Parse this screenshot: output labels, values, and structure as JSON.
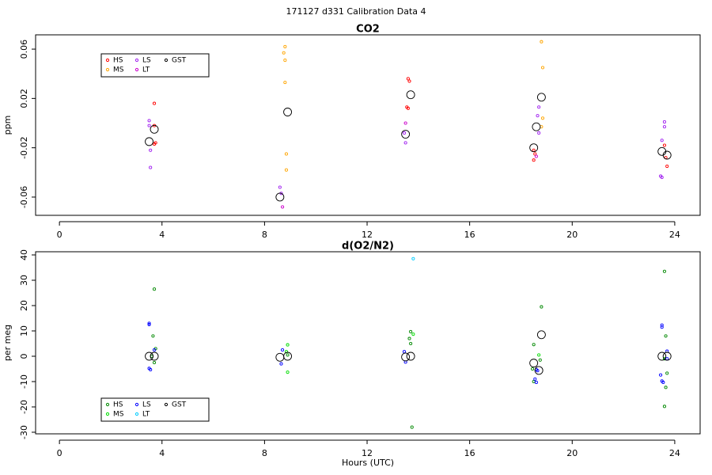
{
  "title": "171127  d331   Calibration Data 4",
  "chart_data": [
    {
      "type": "scatter",
      "title": "CO2",
      "ylabel": "ppm",
      "xlim": [
        -0.93,
        24.99
      ],
      "xticks": [
        0,
        4,
        8,
        12,
        16,
        20,
        24
      ],
      "ylim": [
        -0.0748,
        0.0716
      ],
      "yticks": [
        -0.06,
        -0.02,
        0.02,
        0.06
      ],
      "legend": "top-left",
      "series": [
        {
          "name": "HS",
          "color": "#ff0000",
          "marker_size": 1.6,
          "x": [
            3.7,
            3.7,
            3.7,
            3.75,
            13.6,
            13.65,
            13.6,
            13.55,
            18.5,
            18.55,
            18.5,
            23.6,
            23.65,
            23.7
          ],
          "y": [
            0.016,
            -0.002,
            -0.017,
            -0.016,
            0.036,
            0.034,
            0.012,
            0.013,
            -0.022,
            -0.025,
            -0.03,
            -0.018,
            -0.028,
            -0.035
          ]
        },
        {
          "name": "MS",
          "color": "#ffa500",
          "marker_size": 1.6,
          "x": [
            8.8,
            8.75,
            8.8,
            8.8,
            8.85,
            8.85,
            18.8,
            18.85,
            18.85,
            18.8
          ],
          "y": [
            0.062,
            0.057,
            0.051,
            0.033,
            -0.025,
            -0.038,
            0.066,
            0.045,
            0.004,
            -0.003
          ]
        },
        {
          "name": "LS",
          "color": "#a020f0",
          "marker_size": 1.6,
          "x": [
            3.5,
            3.5,
            3.55,
            3.55,
            8.6,
            8.65,
            13.5,
            13.45,
            18.7,
            18.65,
            18.7,
            23.5,
            23.45,
            23.5,
            23.6,
            23.6
          ],
          "y": [
            0.002,
            -0.002,
            -0.022,
            -0.036,
            -0.052,
            -0.057,
            -0.016,
            -0.008,
            0.013,
            0.006,
            -0.008,
            -0.014,
            -0.043,
            -0.044,
            0.001,
            -0.003
          ]
        },
        {
          "name": "LT",
          "color": "#cc00cc",
          "marker_size": 1.6,
          "x": [
            8.7,
            13.5,
            18.6
          ],
          "y": [
            -0.068,
            0.0,
            -0.027
          ]
        },
        {
          "name": "GST",
          "color": "#000000",
          "marker_size": 5,
          "x": [
            3.5,
            3.7,
            8.6,
            8.9,
            13.5,
            13.7,
            18.5,
            18.6,
            18.8,
            23.5,
            23.7
          ],
          "y": [
            -0.015,
            -0.005,
            -0.06,
            0.009,
            -0.009,
            0.023,
            -0.02,
            -0.003,
            0.021,
            -0.023,
            -0.026
          ]
        }
      ]
    },
    {
      "type": "scatter",
      "title": "d(O2/N2)",
      "ylabel": "per meg",
      "xlabel": "Hours (UTC)",
      "xlim": [
        -0.93,
        24.99
      ],
      "xticks": [
        0,
        4,
        8,
        12,
        16,
        20,
        24
      ],
      "ylim": [
        -30.63,
        41.25
      ],
      "yticks": [
        -30,
        -20,
        -10,
        0,
        10,
        20,
        30,
        40
      ],
      "legend": "bottom-left",
      "series": [
        {
          "name": "HS",
          "color": "#008800",
          "marker_size": 1.6,
          "x": [
            3.7,
            3.65,
            3.75,
            3.7,
            3.6,
            8.9,
            13.7,
            13.65,
            13.7,
            13.75,
            18.5,
            18.45,
            18.5,
            18.8,
            18.75,
            23.6,
            23.65,
            23.7,
            23.65,
            23.6
          ],
          "y": [
            26.5,
            8,
            3,
            -2.5,
            0,
            0.5,
            9.7,
            7,
            5,
            -28,
            4.6,
            -5,
            -10,
            19.5,
            -1.5,
            33.5,
            8,
            -6.7,
            -12.3,
            -19.8
          ]
        },
        {
          "name": "MS",
          "color": "#00dd00",
          "marker_size": 1.6,
          "x": [
            8.9,
            8.85,
            8.9,
            13.8,
            18.7,
            23.6
          ],
          "y": [
            4.5,
            1.8,
            -6.3,
            8.7,
            0.5,
            -1
          ]
        },
        {
          "name": "LS",
          "color": "#0000ff",
          "marker_size": 1.6,
          "x": [
            3.5,
            3.5,
            3.5,
            3.55,
            3.7,
            8.7,
            8.65,
            13.5,
            13.45,
            18.6,
            18.65,
            18.55,
            18.6,
            23.5,
            23.5,
            23.45,
            23.5,
            23.55,
            23.7,
            23.7
          ],
          "y": [
            13,
            12.5,
            -4.8,
            -5.3,
            2.5,
            2.5,
            -3,
            -2.3,
            1.8,
            -5.3,
            -5.7,
            -9,
            -10.3,
            12.3,
            11.5,
            -7.4,
            -9.8,
            -10.3,
            2,
            -1
          ]
        },
        {
          "name": "LT",
          "color": "#00ccff",
          "marker_size": 1.6,
          "x": [
            13.8
          ],
          "y": [
            38.5
          ]
        },
        {
          "name": "GST",
          "color": "#000000",
          "marker_size": 5,
          "x": [
            3.5,
            3.7,
            8.6,
            8.9,
            13.5,
            13.7,
            18.5,
            18.7,
            18.8,
            23.5,
            23.7
          ],
          "y": [
            0,
            0,
            -0.4,
            0,
            -0.3,
            0,
            -2.7,
            -5.6,
            8.5,
            0,
            0
          ]
        }
      ]
    }
  ]
}
